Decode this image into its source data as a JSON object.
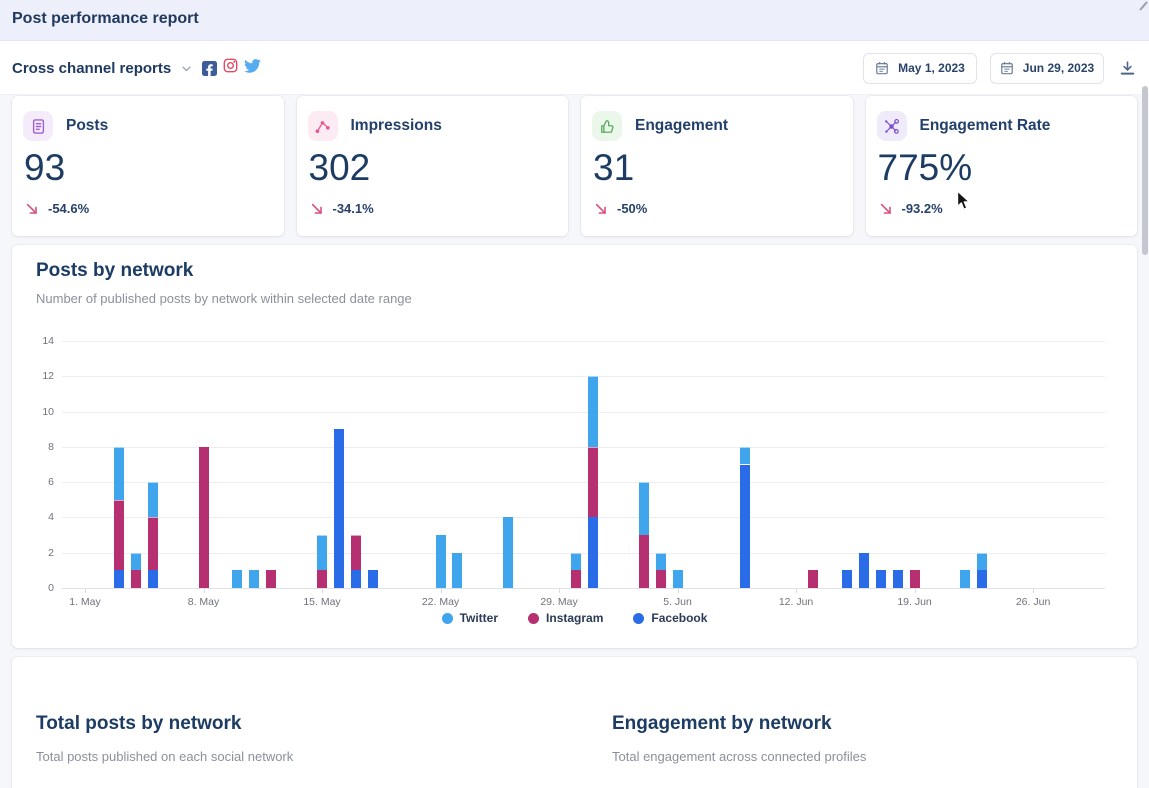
{
  "header": {
    "title": "Post performance report"
  },
  "toolbar": {
    "report_selector": "Cross channel reports",
    "networks": [
      "facebook",
      "instagram",
      "twitter"
    ],
    "date_from": "May 1, 2023",
    "date_to": "Jun 29, 2023"
  },
  "stat_cards": [
    {
      "label": "Posts",
      "value": "93",
      "delta": "-54.6%",
      "icon": "document-icon",
      "accent": "#a25ed6",
      "accent_bg": "#f4ecfb"
    },
    {
      "label": "Impressions",
      "value": "302",
      "delta": "-34.1%",
      "icon": "scatter-icon",
      "accent": "#e8568f",
      "accent_bg": "#fdebf3"
    },
    {
      "label": "Engagement",
      "value": "31",
      "delta": "-50%",
      "icon": "thumbs-up-icon",
      "accent": "#58ae5e",
      "accent_bg": "#eaf7ea"
    },
    {
      "label": "Engagement Rate",
      "value": "775%",
      "delta": "-93.2%",
      "icon": "network-icon",
      "accent": "#7a4fd0",
      "accent_bg": "#f0ebfa"
    }
  ],
  "trend_color": "#dd4f7d",
  "chart_card": {
    "title": "Posts by network",
    "subtitle": "Number of published posts by network within selected date range"
  },
  "chart_data": {
    "type": "bar",
    "stacked": true,
    "title": "Posts by network",
    "xlabel": "",
    "ylabel": "",
    "ylim": [
      0,
      14
    ],
    "y_ticks": [
      0,
      2,
      4,
      6,
      8,
      10,
      12,
      14
    ],
    "grid": "horizontal",
    "legend_position": "bottom",
    "x_ticks": [
      {
        "label": "1. May",
        "day": 0
      },
      {
        "label": "8. May",
        "day": 7
      },
      {
        "label": "15. May",
        "day": 14
      },
      {
        "label": "22. May",
        "day": 21
      },
      {
        "label": "29. May",
        "day": 28
      },
      {
        "label": "5. Jun",
        "day": 35
      },
      {
        "label": "12. Jun",
        "day": 42
      },
      {
        "label": "19. Jun",
        "day": 49
      },
      {
        "label": "26. Jun",
        "day": 56
      }
    ],
    "series": [
      {
        "name": "Facebook",
        "key": "fb",
        "color": "#2a6be8"
      },
      {
        "name": "Instagram",
        "key": "ig",
        "color": "#b52f71"
      },
      {
        "name": "Twitter",
        "key": "tw",
        "color": "#3fa5ec"
      }
    ],
    "legend": [
      {
        "name": "Twitter",
        "color": "#3fa5ec"
      },
      {
        "name": "Instagram",
        "color": "#b52f71"
      },
      {
        "name": "Facebook",
        "color": "#2a6be8"
      }
    ],
    "bars": [
      {
        "date": "3. May",
        "day": 2,
        "fb": 1,
        "ig": 4,
        "tw": 3
      },
      {
        "date": "4. May",
        "day": 3,
        "fb": 0,
        "ig": 1,
        "tw": 1
      },
      {
        "date": "5. May",
        "day": 4,
        "fb": 1,
        "ig": 3,
        "tw": 2
      },
      {
        "date": "8. May",
        "day": 7,
        "fb": 0,
        "ig": 8,
        "tw": 0
      },
      {
        "date": "10. May",
        "day": 9,
        "fb": 0,
        "ig": 0,
        "tw": 1
      },
      {
        "date": "11. May",
        "day": 10,
        "fb": 0,
        "ig": 0,
        "tw": 1
      },
      {
        "date": "12. May",
        "day": 11,
        "fb": 0,
        "ig": 1,
        "tw": 0
      },
      {
        "date": "15. May",
        "day": 14,
        "fb": 0,
        "ig": 1,
        "tw": 2
      },
      {
        "date": "16. May",
        "day": 15,
        "fb": 9,
        "ig": 0,
        "tw": 0
      },
      {
        "date": "17. May",
        "day": 16,
        "fb": 1,
        "ig": 2,
        "tw": 0
      },
      {
        "date": "18. May",
        "day": 17,
        "fb": 1,
        "ig": 0,
        "tw": 0
      },
      {
        "date": "22. May",
        "day": 21,
        "fb": 0,
        "ig": 0,
        "tw": 3
      },
      {
        "date": "23. May",
        "day": 22,
        "fb": 0,
        "ig": 0,
        "tw": 2
      },
      {
        "date": "26. May",
        "day": 25,
        "fb": 0,
        "ig": 0,
        "tw": 4
      },
      {
        "date": "30. May",
        "day": 29,
        "fb": 0,
        "ig": 1,
        "tw": 1
      },
      {
        "date": "31. May",
        "day": 30,
        "fb": 4,
        "ig": 4,
        "tw": 4
      },
      {
        "date": "3. Jun",
        "day": 33,
        "fb": 0,
        "ig": 3,
        "tw": 3
      },
      {
        "date": "4. Jun",
        "day": 34,
        "fb": 0,
        "ig": 1,
        "tw": 1
      },
      {
        "date": "5. Jun",
        "day": 35,
        "fb": 0,
        "ig": 0,
        "tw": 1
      },
      {
        "date": "9. Jun",
        "day": 39,
        "fb": 7,
        "ig": 0,
        "tw": 1
      },
      {
        "date": "13. Jun",
        "day": 43,
        "fb": 0,
        "ig": 1,
        "tw": 0
      },
      {
        "date": "15. Jun",
        "day": 45,
        "fb": 1,
        "ig": 0,
        "tw": 0
      },
      {
        "date": "16. Jun",
        "day": 46,
        "fb": 2,
        "ig": 0,
        "tw": 0
      },
      {
        "date": "17. Jun",
        "day": 47,
        "fb": 1,
        "ig": 0,
        "tw": 0
      },
      {
        "date": "18. Jun",
        "day": 48,
        "fb": 1,
        "ig": 0,
        "tw": 0
      },
      {
        "date": "19. Jun",
        "day": 49,
        "fb": 0,
        "ig": 1,
        "tw": 0
      },
      {
        "date": "22. Jun",
        "day": 52,
        "fb": 0,
        "ig": 0,
        "tw": 1
      },
      {
        "date": "23. Jun",
        "day": 53,
        "fb": 1,
        "ig": 0,
        "tw": 1
      }
    ]
  },
  "sections": [
    {
      "title": "Total posts by network",
      "subtitle": "Total posts published on each social network"
    },
    {
      "title": "Engagement by network",
      "subtitle": "Total engagement across connected profiles"
    }
  ]
}
